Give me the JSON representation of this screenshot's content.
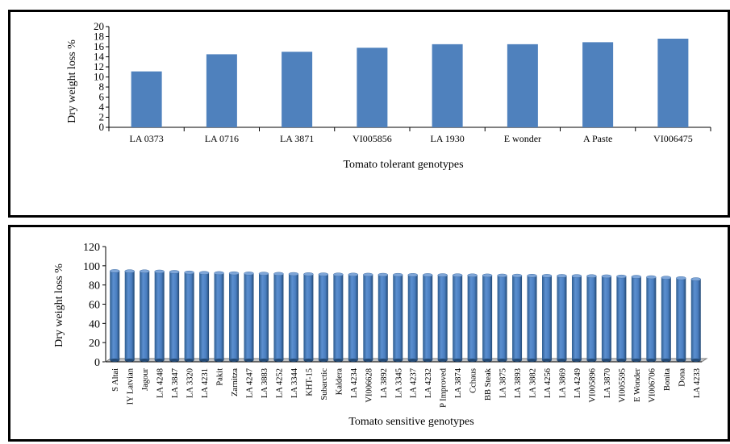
{
  "chart_data": [
    {
      "type": "bar",
      "title": "",
      "xlabel": "Tomato tolerant genotypes",
      "ylabel": "Dry weight loss %",
      "ylim": [
        0,
        20
      ],
      "yticks": [
        0,
        2,
        4,
        6,
        8,
        10,
        12,
        14,
        16,
        18,
        20
      ],
      "grid": false,
      "legend": "none",
      "bar_color": "#4f81bd",
      "categories": [
        "LA 0373",
        "LA 0716",
        "LA 3871",
        "VI005856",
        "LA 1930",
        "E wonder",
        "A Paste",
        "VI006475"
      ],
      "values": [
        11.1,
        14.5,
        15.0,
        15.8,
        16.5,
        16.5,
        16.9,
        17.6
      ]
    },
    {
      "type": "bar",
      "title": "",
      "xlabel": "Tomato sensitive genotypes",
      "ylabel": "Dry  weight loss %",
      "ylim": [
        0,
        120
      ],
      "yticks": [
        0,
        20,
        40,
        60,
        80,
        100,
        120
      ],
      "grid": false,
      "legend": "none",
      "bar_color": "#4f81bd",
      "style": "3d-cylinder",
      "categories": [
        "S Altai",
        "IY Latvian",
        "Jagour",
        "LA 4248",
        "LA 3847",
        "LA 3320",
        "LA 4231",
        "Pakit",
        "Zarnitza",
        "LA 4247",
        "LA 3883",
        "LA 4252",
        "LA 3344",
        "KHT-15",
        "Subarctic",
        "Kaldera",
        "LA 4234",
        "VI006628",
        "LA 3892",
        "LA 3345",
        "LA 4237",
        "LA 4232",
        "P Improved",
        "LA 3874",
        "Cchaus",
        "BB Steak",
        "LA 3875",
        "LA 3893",
        "LA 3882",
        "LA 4256",
        "LA 3869",
        "LA 4249",
        "VI005896",
        "LA 3870",
        "VI005595",
        "E Wonder",
        "VI006706",
        "Bonita",
        "Dona",
        "LA 4233"
      ],
      "values": [
        94.5,
        94.3,
        94.2,
        94.0,
        93.6,
        93.0,
        92.6,
        92.4,
        92.2,
        92.0,
        91.8,
        91.6,
        91.4,
        91.2,
        91.0,
        90.9,
        90.8,
        90.7,
        90.6,
        90.5,
        90.4,
        90.3,
        90.2,
        90.1,
        90.0,
        89.9,
        89.8,
        89.7,
        89.6,
        89.5,
        89.4,
        89.3,
        89.2,
        89.0,
        88.8,
        88.5,
        88.1,
        87.6,
        87.1,
        86.0
      ]
    }
  ]
}
